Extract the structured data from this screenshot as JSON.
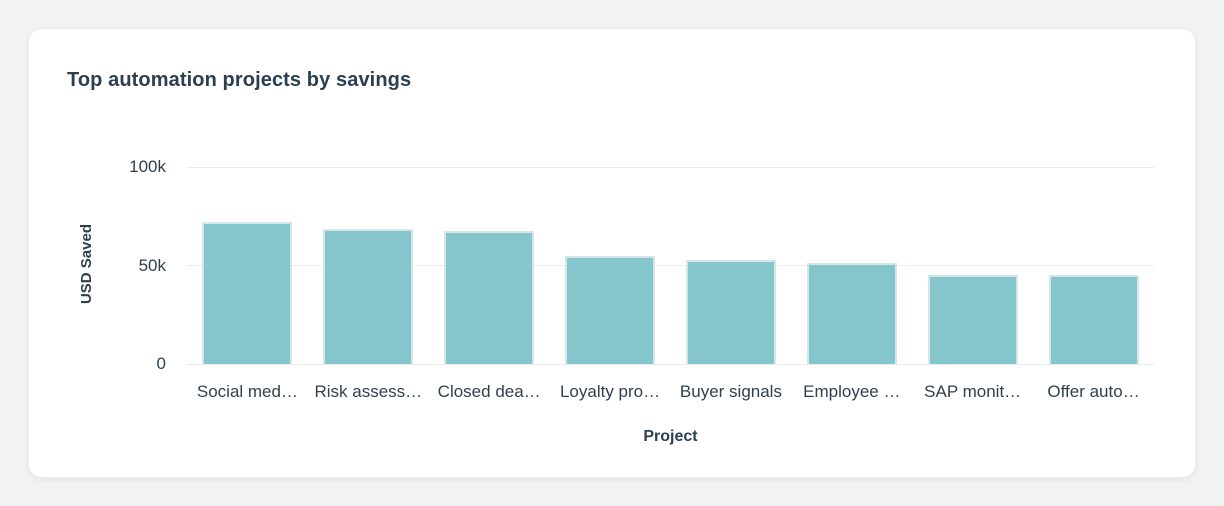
{
  "page": {
    "background_color": "#f1f2f4",
    "card_background_color": "#ffffff"
  },
  "card": {
    "title": "Top automation projects by savings"
  },
  "chart_data": {
    "type": "bar",
    "title": "Top automation projects by savings",
    "xlabel": "Project",
    "ylabel": "USD Saved",
    "categories": [
      "Social med…",
      "Risk assess…",
      "Closed dea…",
      "Loyalty pro…",
      "Buyer signals",
      "Employee …",
      "SAP monit…",
      "Offer auto…"
    ],
    "values": [
      72000,
      68500,
      67500,
      54800,
      52800,
      51300,
      45200,
      45200
    ],
    "ylim": [
      0,
      100000
    ],
    "yticks": [
      {
        "label": "0",
        "value": 0
      },
      {
        "label": "50k",
        "value": 50000
      },
      {
        "label": "100k",
        "value": 100000
      }
    ],
    "legend": "none",
    "grid": "horizontal",
    "bar_color": "#85c5cc",
    "bar_border_color": "#d4e6e9",
    "gridline_color": "#ebebee",
    "text_color": "#2f4050"
  }
}
